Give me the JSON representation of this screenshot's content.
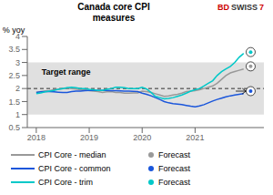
{
  "chart_data": {
    "type": "line",
    "title": "Canada core CPI\nmeasures",
    "ylabel": "% yoy",
    "x": [
      2018.0,
      2018.083,
      2018.167,
      2018.25,
      2018.333,
      2018.417,
      2018.5,
      2018.583,
      2018.667,
      2018.75,
      2018.833,
      2018.917,
      2019.0,
      2019.083,
      2019.167,
      2019.25,
      2019.333,
      2019.417,
      2019.5,
      2019.583,
      2019.667,
      2019.75,
      2019.833,
      2019.917,
      2020.0,
      2020.083,
      2020.167,
      2020.25,
      2020.333,
      2020.417,
      2020.5,
      2020.583,
      2020.667,
      2020.75,
      2020.833,
      2020.917,
      2021.0,
      2021.083,
      2021.167,
      2021.25,
      2021.333,
      2021.417,
      2021.5,
      2021.583,
      2021.667,
      2021.75,
      2021.833,
      2021.917
    ],
    "xlim": [
      2017.83,
      2022.3
    ],
    "xticks": [
      2018,
      2019,
      2020,
      2021
    ],
    "ylim": [
      0.5,
      4.0
    ],
    "yticks": [
      0.5,
      1,
      1.5,
      2,
      2.5,
      3,
      3.5,
      4
    ],
    "grid": false,
    "series": [
      {
        "name": "CPI Core - median",
        "color": "#999999",
        "values": [
          1.85,
          1.88,
          1.9,
          1.92,
          1.95,
          1.97,
          2.0,
          2.02,
          2.0,
          1.98,
          1.95,
          1.95,
          1.92,
          1.9,
          1.88,
          1.85,
          1.87,
          1.88,
          1.85,
          1.85,
          1.82,
          1.82,
          1.83,
          1.83,
          1.9,
          1.88,
          1.85,
          1.8,
          1.75,
          1.7,
          1.72,
          1.75,
          1.78,
          1.82,
          1.88,
          1.9,
          1.92,
          1.95,
          2.0,
          2.05,
          2.1,
          2.2,
          2.35,
          2.5,
          2.6,
          2.65,
          2.7,
          2.75
        ],
        "forecast": 2.85
      },
      {
        "name": "CPI Core - common",
        "color": "#1a56db",
        "values": [
          1.85,
          1.87,
          1.88,
          1.88,
          1.87,
          1.86,
          1.85,
          1.85,
          1.88,
          1.9,
          1.9,
          1.92,
          1.93,
          1.93,
          1.93,
          1.93,
          1.93,
          1.92,
          1.92,
          1.91,
          1.9,
          1.9,
          1.89,
          1.88,
          1.82,
          1.78,
          1.72,
          1.65,
          1.58,
          1.5,
          1.45,
          1.42,
          1.4,
          1.38,
          1.35,
          1.32,
          1.3,
          1.33,
          1.38,
          1.45,
          1.52,
          1.58,
          1.63,
          1.68,
          1.72,
          1.75,
          1.78,
          1.8
        ],
        "forecast": 1.9
      },
      {
        "name": "CPI Core - trim",
        "color": "#00c8c8",
        "values": [
          1.8,
          1.83,
          1.87,
          1.9,
          1.93,
          1.97,
          2.0,
          2.03,
          2.05,
          2.03,
          2.0,
          2.0,
          1.97,
          1.95,
          1.93,
          1.93,
          1.97,
          2.0,
          2.05,
          2.05,
          2.03,
          2.0,
          2.0,
          2.0,
          2.05,
          1.98,
          1.85,
          1.7,
          1.65,
          1.6,
          1.62,
          1.65,
          1.7,
          1.75,
          1.82,
          1.9,
          1.95,
          2.0,
          2.1,
          2.2,
          2.3,
          2.5,
          2.65,
          2.75,
          2.85,
          3.0,
          3.2,
          3.35
        ],
        "forecast": 3.4
      }
    ],
    "forecast_x": 2022.05,
    "forecast_label": "Forecast",
    "target_range": [
      1.0,
      3.0
    ],
    "target_mid": 2.0,
    "target_range_color": "#e0e0e0",
    "annotations": [
      {
        "text": "Target range",
        "x": 2018.1,
        "y": 2.65
      }
    ],
    "logo": [
      {
        "text": "BD",
        "color": "#cc0000"
      },
      {
        "text": "SWISS",
        "color": "#333333"
      },
      {
        "text": "7",
        "color": "#cc0000"
      }
    ]
  }
}
